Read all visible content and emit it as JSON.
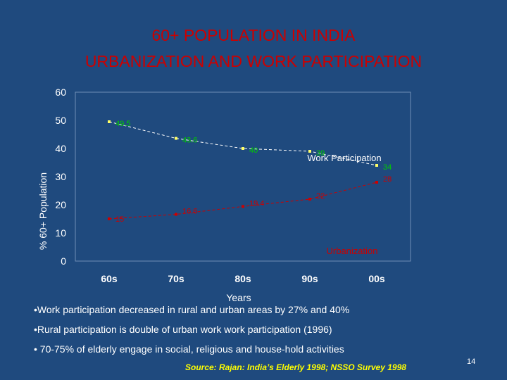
{
  "slide": {
    "title_line1": "60+ POPULATION IN INDIA",
    "title_line2": "URBANIZATION AND WORK PARTICIPATION",
    "bullets": [
      "•Work participation decreased in rural and urban areas by 27% and 40%",
      "•Rural participation is double of urban work work participation (1996)",
      "• 70-75% of elderly engage in social, religious and house-hold activities"
    ],
    "source": "Source: Rajan: India’s Elderly 1998; NSSO Survey 1998",
    "page_number": "14"
  },
  "colors": {
    "background": "#1f4a7e",
    "title": "#cc0000",
    "work_series": "#00cc00",
    "urban_series": "#cc0000",
    "axis_text": "#ffffff",
    "source_text": "#ffff00"
  },
  "chart_data": {
    "type": "line",
    "categories": [
      "60s",
      "70s",
      "80s",
      "90s",
      "00s"
    ],
    "xlabel": "Years",
    "ylabel": "% 60+ Population",
    "ylim": [
      0,
      60
    ],
    "yticks": [
      "0",
      "10",
      "20",
      "30",
      "40",
      "50",
      "60"
    ],
    "grid": false,
    "series": [
      {
        "name": "Work Participation",
        "values": [
          49.5,
          43.6,
          40,
          39,
          34
        ],
        "labels": [
          "49.5",
          "43.6",
          "40",
          "39",
          "34"
        ],
        "color": "#00cc00"
      },
      {
        "name": "Urbanization",
        "values": [
          15,
          16.6,
          19.4,
          22,
          28
        ],
        "labels": [
          "15",
          "16.6",
          "19.4",
          "22",
          "28"
        ],
        "color": "#cc0000"
      }
    ]
  }
}
